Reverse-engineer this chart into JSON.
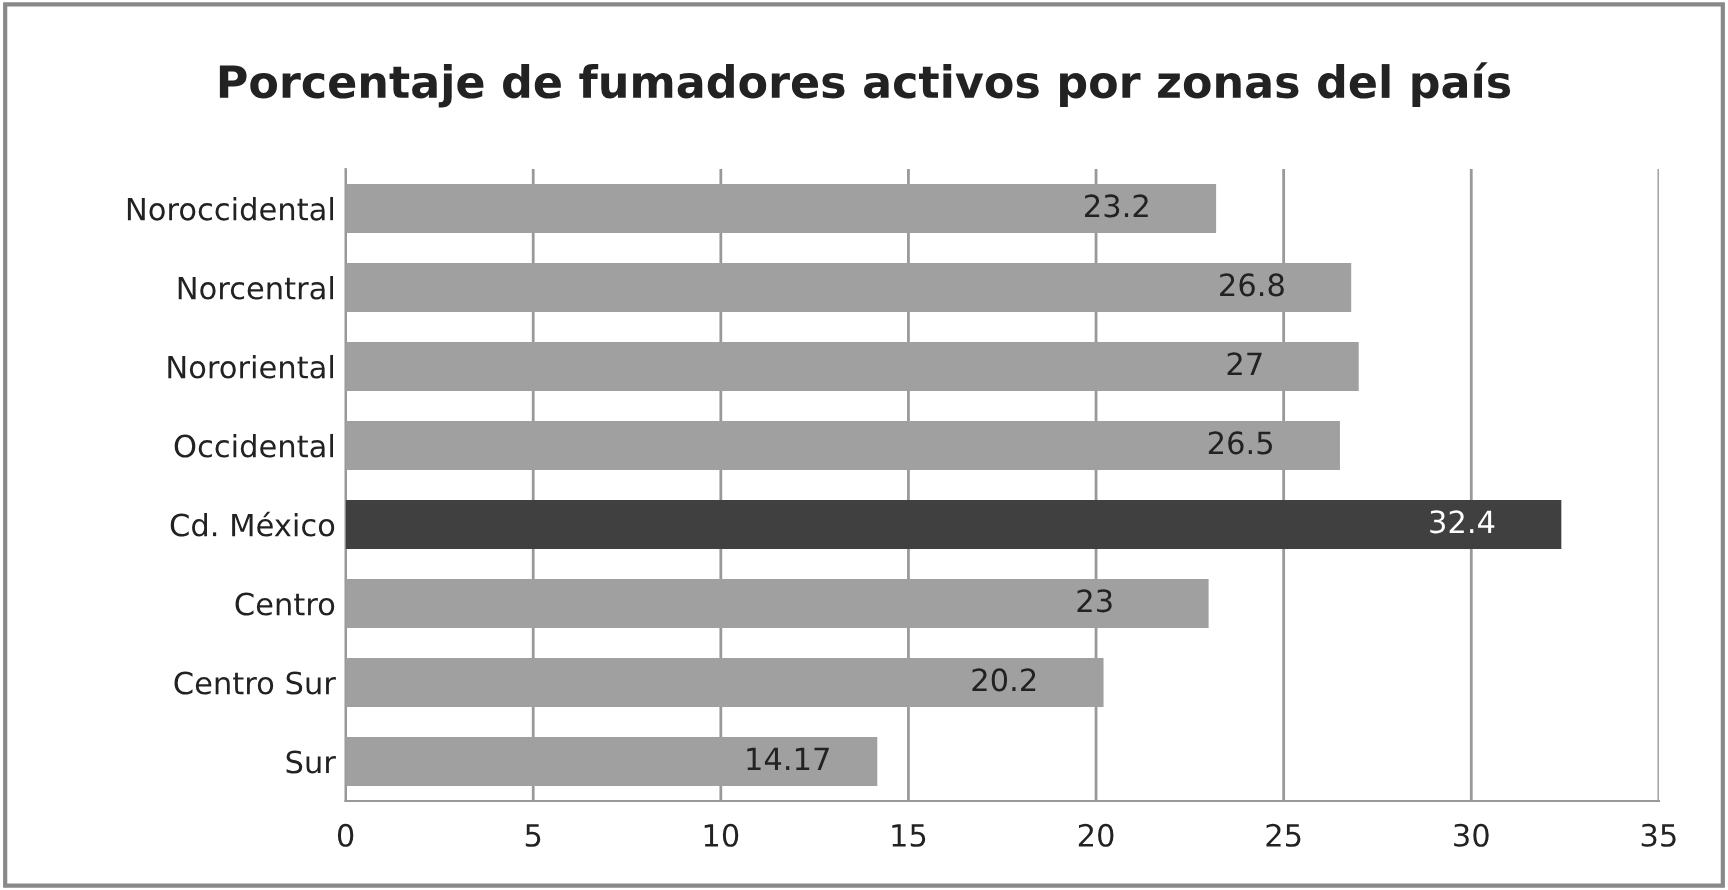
{
  "chart_data": {
    "type": "bar",
    "orientation": "horizontal",
    "title": "Porcentaje de fumadores activos por zonas del país",
    "categories": [
      "Noroccidental",
      "Norcentral",
      "Nororiental",
      "Occidental",
      "Cd. México",
      "Centro",
      "Centro Sur",
      "Sur"
    ],
    "values": [
      23.2,
      26.8,
      27,
      26.5,
      32.4,
      23,
      20.2,
      14.17
    ],
    "colors": [
      "#a0a0a0",
      "#a0a0a0",
      "#a0a0a0",
      "#a0a0a0",
      "#404040",
      "#a0a0a0",
      "#a0a0a0",
      "#a0a0a0"
    ],
    "xlim": [
      0,
      35
    ],
    "xticks": [
      0,
      5,
      10,
      15,
      20,
      25,
      30,
      35
    ],
    "grid": "x",
    "data_labels": true
  }
}
